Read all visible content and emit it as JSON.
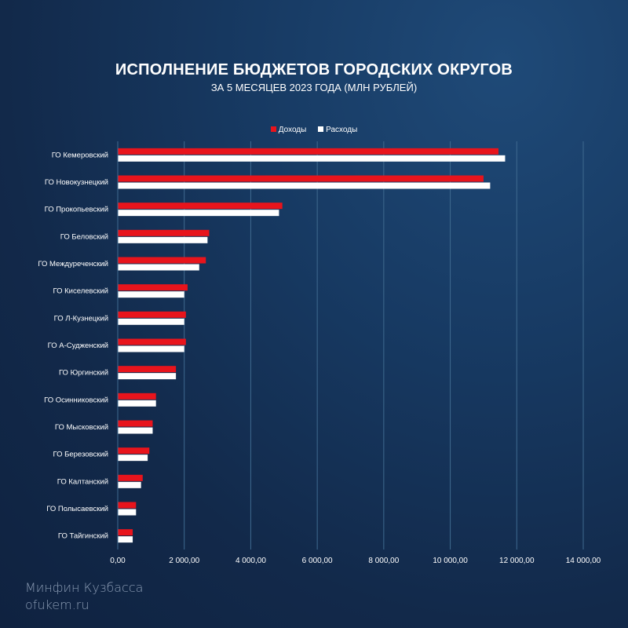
{
  "title": "ИСПОЛНЕНИЕ БЮДЖЕТОВ ГОРОДСКИХ ОКРУГОВ",
  "subtitle": "ЗА 5 МЕСЯЦЕВ 2023 ГОДА (МЛН РУБЛЕЙ)",
  "legend": {
    "income": "Доходы",
    "expense": "Расходы"
  },
  "colors": {
    "income": "#e8141c",
    "expense": "#ffffff",
    "grid": "#3f6a8f",
    "text": "#ffffff"
  },
  "footer": {
    "line1": "Минфин Кузбасса",
    "line2": "ofukem.ru"
  },
  "chart_data": {
    "type": "bar",
    "orientation": "horizontal",
    "title": "ИСПОЛНЕНИЕ БЮДЖЕТОВ ГОРОДСКИХ ОКРУГОВ",
    "subtitle": "ЗА 5 МЕСЯЦЕВ 2023 ГОДА (МЛН РУБЛЕЙ)",
    "categories": [
      "ГО Кемеровский",
      "ГО Новокузнецкий",
      "ГО Прокопьевский",
      "ГО Беловский",
      "ГО Междуреченский",
      "ГО Киселевский",
      "ГО Л-Кузнецкий",
      "ГО А-Судженский",
      "ГО Юргинский",
      "ГО Осинниковский",
      "ГО Мысковский",
      "ГО Березовский",
      "ГО Калтанский",
      "ГО Полысаевский",
      "ГО Тайгинский"
    ],
    "series": [
      {
        "name": "Доходы",
        "values": [
          11450,
          11000,
          4950,
          2750,
          2650,
          2100,
          2050,
          2050,
          1750,
          1150,
          1050,
          950,
          750,
          550,
          450
        ]
      },
      {
        "name": "Расходы",
        "values": [
          11650,
          11200,
          4850,
          2700,
          2450,
          2000,
          2000,
          2000,
          1750,
          1150,
          1050,
          900,
          700,
          550,
          450
        ]
      }
    ],
    "xlim": [
      0,
      14000
    ],
    "ticks": [
      "0,00",
      "2 000,00",
      "4 000,00",
      "6 000,00",
      "8 000,00",
      "10 000,00",
      "12 000,00",
      "14 000,00"
    ],
    "tick_values": [
      0,
      2000,
      4000,
      6000,
      8000,
      10000,
      12000,
      14000
    ],
    "grid": true,
    "legend_position": "top"
  }
}
